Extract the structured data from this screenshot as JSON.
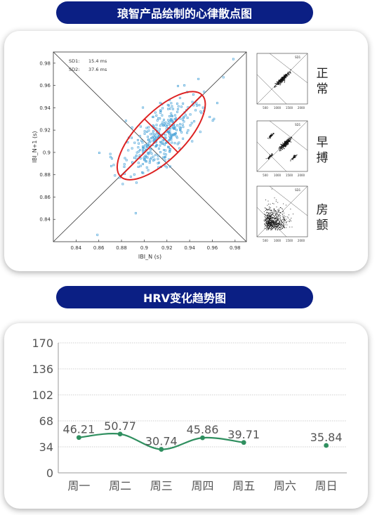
{
  "section1": {
    "title": "琅智产品绘制的心律散点图"
  },
  "section2": {
    "title": "HRV变化趋势图"
  },
  "main_plot": {
    "sd1_label": "SD1:",
    "sd1_value": "15.4 ms",
    "sd2_label": "SD2:",
    "sd2_value": "37.6 ms",
    "xlabel": "IBI_N (s)",
    "ylabel": "IBI_N+1 (s)",
    "xlim": [
      0.82,
      0.99
    ],
    "ylim": [
      0.82,
      0.99
    ],
    "x_ticks": [
      "0.84",
      "0.86",
      "0.88",
      "0.9",
      "0.92",
      "0.94",
      "0.96",
      "0.98"
    ],
    "y_ticks": [
      "0.84",
      "0.86",
      "0.88",
      "0.9",
      "0.92",
      "0.94",
      "0.96",
      "0.98"
    ],
    "ellipse_color": "#dd2222",
    "point_color": "#4aa3d8"
  },
  "thumbnails": [
    {
      "label": "正常",
      "top_text": "SD1",
      "x_ticks": [
        "500",
        "1000",
        "1500",
        "2000"
      ]
    },
    {
      "label": "早搏",
      "top_text": "SD1",
      "x_ticks": [
        "500",
        "1000",
        "1500",
        "2000"
      ]
    },
    {
      "label": "房颤",
      "top_text": "SD1",
      "x_ticks": [
        "500",
        "1000",
        "1500",
        "2000"
      ]
    }
  ],
  "chart_data": {
    "type": "line",
    "categories": [
      "周一",
      "周二",
      "周三",
      "周四",
      "周五",
      "周六",
      "周日"
    ],
    "series": [
      {
        "values": [
          46.21,
          50.77,
          30.74,
          45.86,
          39.71,
          null,
          35.84
        ]
      }
    ],
    "data_labels": [
      "46.21",
      "50.77",
      "30.74",
      "45.86",
      "39.71",
      "",
      "35.84"
    ],
    "y_ticks": [
      "0",
      "34",
      "68",
      "102",
      "136",
      "170"
    ],
    "ylim": [
      0,
      170
    ],
    "grid": true,
    "line_color": "#2f8f5f"
  }
}
